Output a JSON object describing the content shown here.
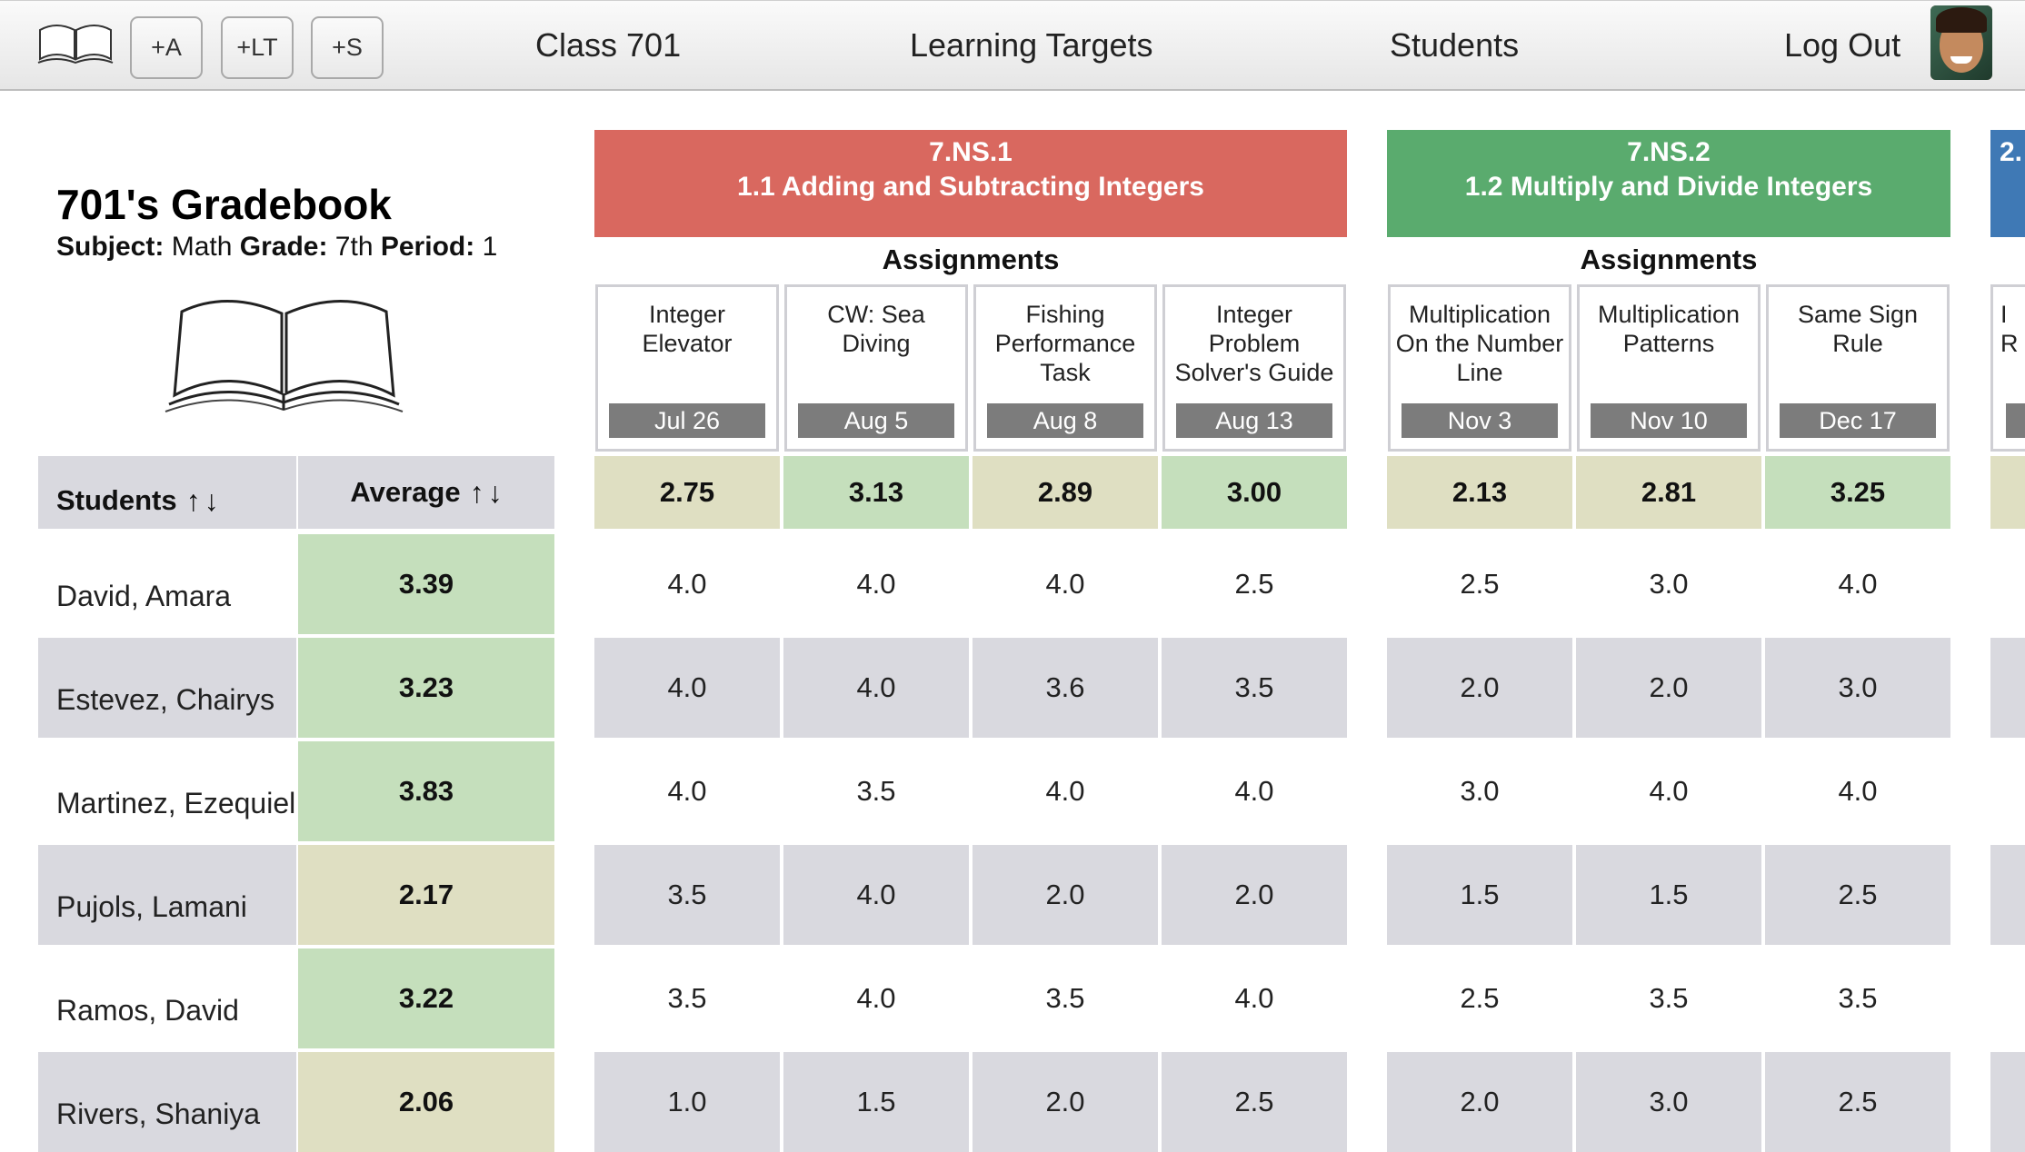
{
  "nav": {
    "add_assignment": "+A",
    "add_learning_target": "+LT",
    "add_student": "+S",
    "class_label": "Class 701",
    "learning_targets": "Learning Targets",
    "students": "Students",
    "log_out": "Log Out"
  },
  "gradebook": {
    "title": "701's Gradebook",
    "subject_label": "Subject:",
    "subject": "Math",
    "grade_label": "Grade:",
    "grade": "7th",
    "period_label": "Period:",
    "period": "1"
  },
  "table": {
    "students_header": "Students",
    "average_header": "Average",
    "sort_up": "↑",
    "sort_down": "↓"
  },
  "students": [
    {
      "name": "David, Amara",
      "average": "3.39",
      "scores": [
        "4.0",
        "4.0",
        "4.0",
        "2.5",
        "2.5",
        "3.0",
        "4.0"
      ]
    },
    {
      "name": "Estevez, Chairys",
      "average": "3.23",
      "scores": [
        "4.0",
        "4.0",
        "3.6",
        "3.5",
        "2.0",
        "2.0",
        "3.0"
      ]
    },
    {
      "name": "Martinez, Ezequiel",
      "average": "3.83",
      "scores": [
        "4.0",
        "3.5",
        "4.0",
        "4.0",
        "3.0",
        "4.0",
        "4.0"
      ]
    },
    {
      "name": "Pujols, Lamani",
      "average": "2.17",
      "scores": [
        "3.5",
        "4.0",
        "2.0",
        "2.0",
        "1.5",
        "1.5",
        "2.5"
      ]
    },
    {
      "name": "Ramos, David",
      "average": "3.22",
      "scores": [
        "3.5",
        "4.0",
        "3.5",
        "4.0",
        "2.5",
        "3.5",
        "3.5"
      ]
    },
    {
      "name": "Rivers, Shaniya",
      "average": "2.06",
      "scores": [
        "1.0",
        "1.5",
        "2.0",
        "2.5",
        "2.0",
        "3.0",
        "2.5"
      ]
    }
  ],
  "learning_targets": [
    {
      "code": "7.NS.1",
      "title": "1.1 Adding and Subtracting Integers",
      "color": "#d9685f",
      "assignments_label": "Assignments",
      "assignments": [
        {
          "name": "Integer Elevator",
          "date": "Jul 26",
          "average": "2.75"
        },
        {
          "name": "CW: Sea Diving",
          "date": "Aug 5",
          "average": "3.13"
        },
        {
          "name": "Fishing Performance Task",
          "date": "Aug 8",
          "average": "2.89"
        },
        {
          "name": "Integer Problem Solver's Guide",
          "date": "Aug 13",
          "average": "3.00"
        }
      ]
    },
    {
      "code": "7.NS.2",
      "title": "1.2 Multiply and Divide Integers",
      "color": "#5aab6e",
      "assignments_label": "Assignments",
      "assignments": [
        {
          "name": "Multiplication On the Number Line",
          "date": "Nov 3",
          "average": "2.13"
        },
        {
          "name": "Multiplication Patterns",
          "date": "Nov 10",
          "average": "2.81"
        },
        {
          "name": "Same Sign Rule",
          "date": "Dec 17",
          "average": "3.25"
        }
      ]
    },
    {
      "code": "2.",
      "color": "#3f79b5",
      "assignment_name_fragment": "I R"
    }
  ]
}
